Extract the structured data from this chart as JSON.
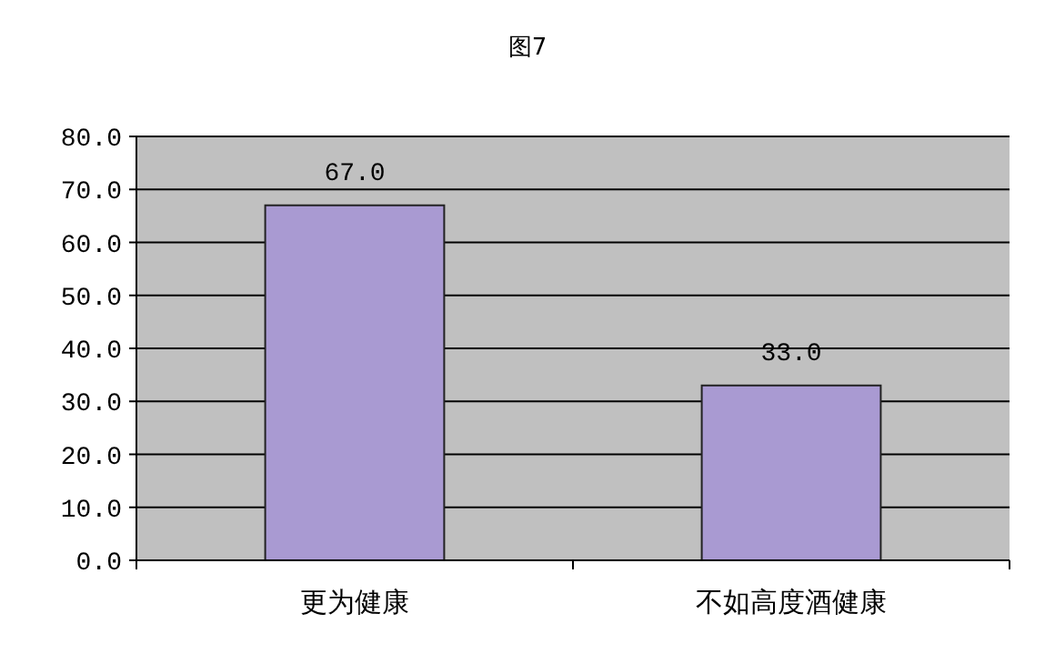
{
  "chart_data": {
    "type": "bar",
    "title": "图7",
    "categories": [
      "更为健康",
      "不如高度酒健康"
    ],
    "values": [
      67.0,
      33.0
    ],
    "color": "#a99ad2",
    "value_labels": [
      "67.0",
      "33.0"
    ],
    "ylim": [
      0,
      80
    ],
    "yticks": [
      {
        "value": 0,
        "label": "0.0"
      },
      {
        "value": 10,
        "label": "10.0"
      },
      {
        "value": 20,
        "label": "20.0"
      },
      {
        "value": 30,
        "label": "30.0"
      },
      {
        "value": 40,
        "label": "40.0"
      },
      {
        "value": 50,
        "label": "50.0"
      },
      {
        "value": 60,
        "label": "60.0"
      },
      {
        "value": 70,
        "label": "70.0"
      },
      {
        "value": 80,
        "label": "80.0"
      }
    ],
    "grid": "y"
  }
}
